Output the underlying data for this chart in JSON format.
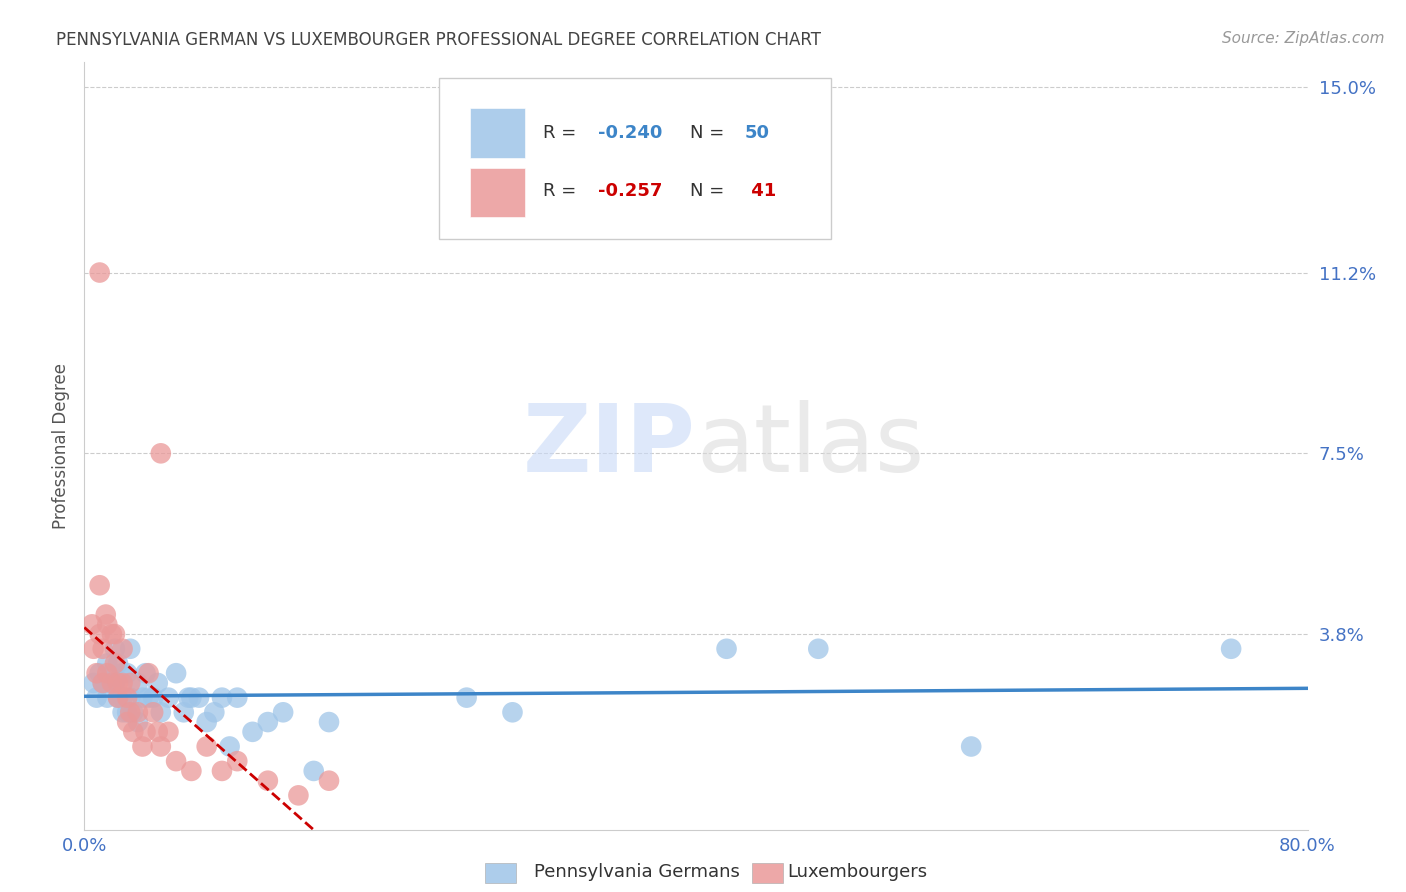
{
  "title": "PENNSYLVANIA GERMAN VS LUXEMBOURGER PROFESSIONAL DEGREE CORRELATION CHART",
  "source": "Source: ZipAtlas.com",
  "ylabel": "Professional Degree",
  "xlim": [
    0.0,
    0.8
  ],
  "ylim": [
    -0.002,
    0.155
  ],
  "xticks": [
    0.0,
    0.1,
    0.2,
    0.3,
    0.4,
    0.5,
    0.6,
    0.7,
    0.8
  ],
  "xticklabels": [
    "0.0%",
    "",
    "",
    "",
    "",
    "",
    "",
    "",
    "80.0%"
  ],
  "yticks": [
    0.038,
    0.075,
    0.112,
    0.15
  ],
  "yticklabels": [
    "3.8%",
    "7.5%",
    "11.2%",
    "15.0%"
  ],
  "watermark": "ZIPatlas",
  "blue_color": "#9fc5e8",
  "pink_color": "#ea9999",
  "blue_line_color": "#3d85c8",
  "pink_line_color": "#cc0000",
  "grid_color": "#cccccc",
  "background_color": "#ffffff",
  "title_color": "#434343",
  "axis_label_color": "#555555",
  "tick_color": "#4472c4",
  "legend_R1": "-0.240",
  "legend_N1": "50",
  "legend_R2": "-0.257",
  "legend_N2": " 41",
  "blue_points_x": [
    0.006,
    0.008,
    0.01,
    0.012,
    0.014,
    0.015,
    0.015,
    0.018,
    0.02,
    0.02,
    0.022,
    0.022,
    0.025,
    0.025,
    0.025,
    0.028,
    0.028,
    0.03,
    0.03,
    0.032,
    0.035,
    0.035,
    0.038,
    0.04,
    0.042,
    0.045,
    0.048,
    0.05,
    0.055,
    0.06,
    0.065,
    0.068,
    0.07,
    0.075,
    0.08,
    0.085,
    0.09,
    0.095,
    0.1,
    0.11,
    0.12,
    0.13,
    0.15,
    0.16,
    0.25,
    0.28,
    0.42,
    0.48,
    0.58,
    0.75
  ],
  "blue_points_y": [
    0.028,
    0.025,
    0.03,
    0.028,
    0.028,
    0.032,
    0.025,
    0.028,
    0.035,
    0.028,
    0.032,
    0.025,
    0.022,
    0.03,
    0.025,
    0.022,
    0.03,
    0.035,
    0.025,
    0.022,
    0.028,
    0.02,
    0.025,
    0.03,
    0.025,
    0.025,
    0.028,
    0.022,
    0.025,
    0.03,
    0.022,
    0.025,
    0.025,
    0.025,
    0.02,
    0.022,
    0.025,
    0.015,
    0.025,
    0.018,
    0.02,
    0.022,
    0.01,
    0.02,
    0.025,
    0.022,
    0.035,
    0.035,
    0.015,
    0.035
  ],
  "pink_points_x": [
    0.005,
    0.006,
    0.008,
    0.01,
    0.01,
    0.012,
    0.012,
    0.014,
    0.015,
    0.015,
    0.018,
    0.018,
    0.02,
    0.02,
    0.022,
    0.022,
    0.025,
    0.025,
    0.028,
    0.028,
    0.03,
    0.03,
    0.032,
    0.035,
    0.038,
    0.04,
    0.042,
    0.045,
    0.048,
    0.05,
    0.055,
    0.06,
    0.07,
    0.08,
    0.09,
    0.1,
    0.12,
    0.14,
    0.16,
    0.01,
    0.05
  ],
  "pink_points_y": [
    0.04,
    0.035,
    0.03,
    0.048,
    0.038,
    0.035,
    0.028,
    0.042,
    0.04,
    0.03,
    0.038,
    0.028,
    0.038,
    0.032,
    0.028,
    0.025,
    0.035,
    0.028,
    0.025,
    0.02,
    0.028,
    0.022,
    0.018,
    0.022,
    0.015,
    0.018,
    0.03,
    0.022,
    0.018,
    0.015,
    0.018,
    0.012,
    0.01,
    0.015,
    0.01,
    0.012,
    0.008,
    0.005,
    0.008,
    0.112,
    0.075
  ]
}
